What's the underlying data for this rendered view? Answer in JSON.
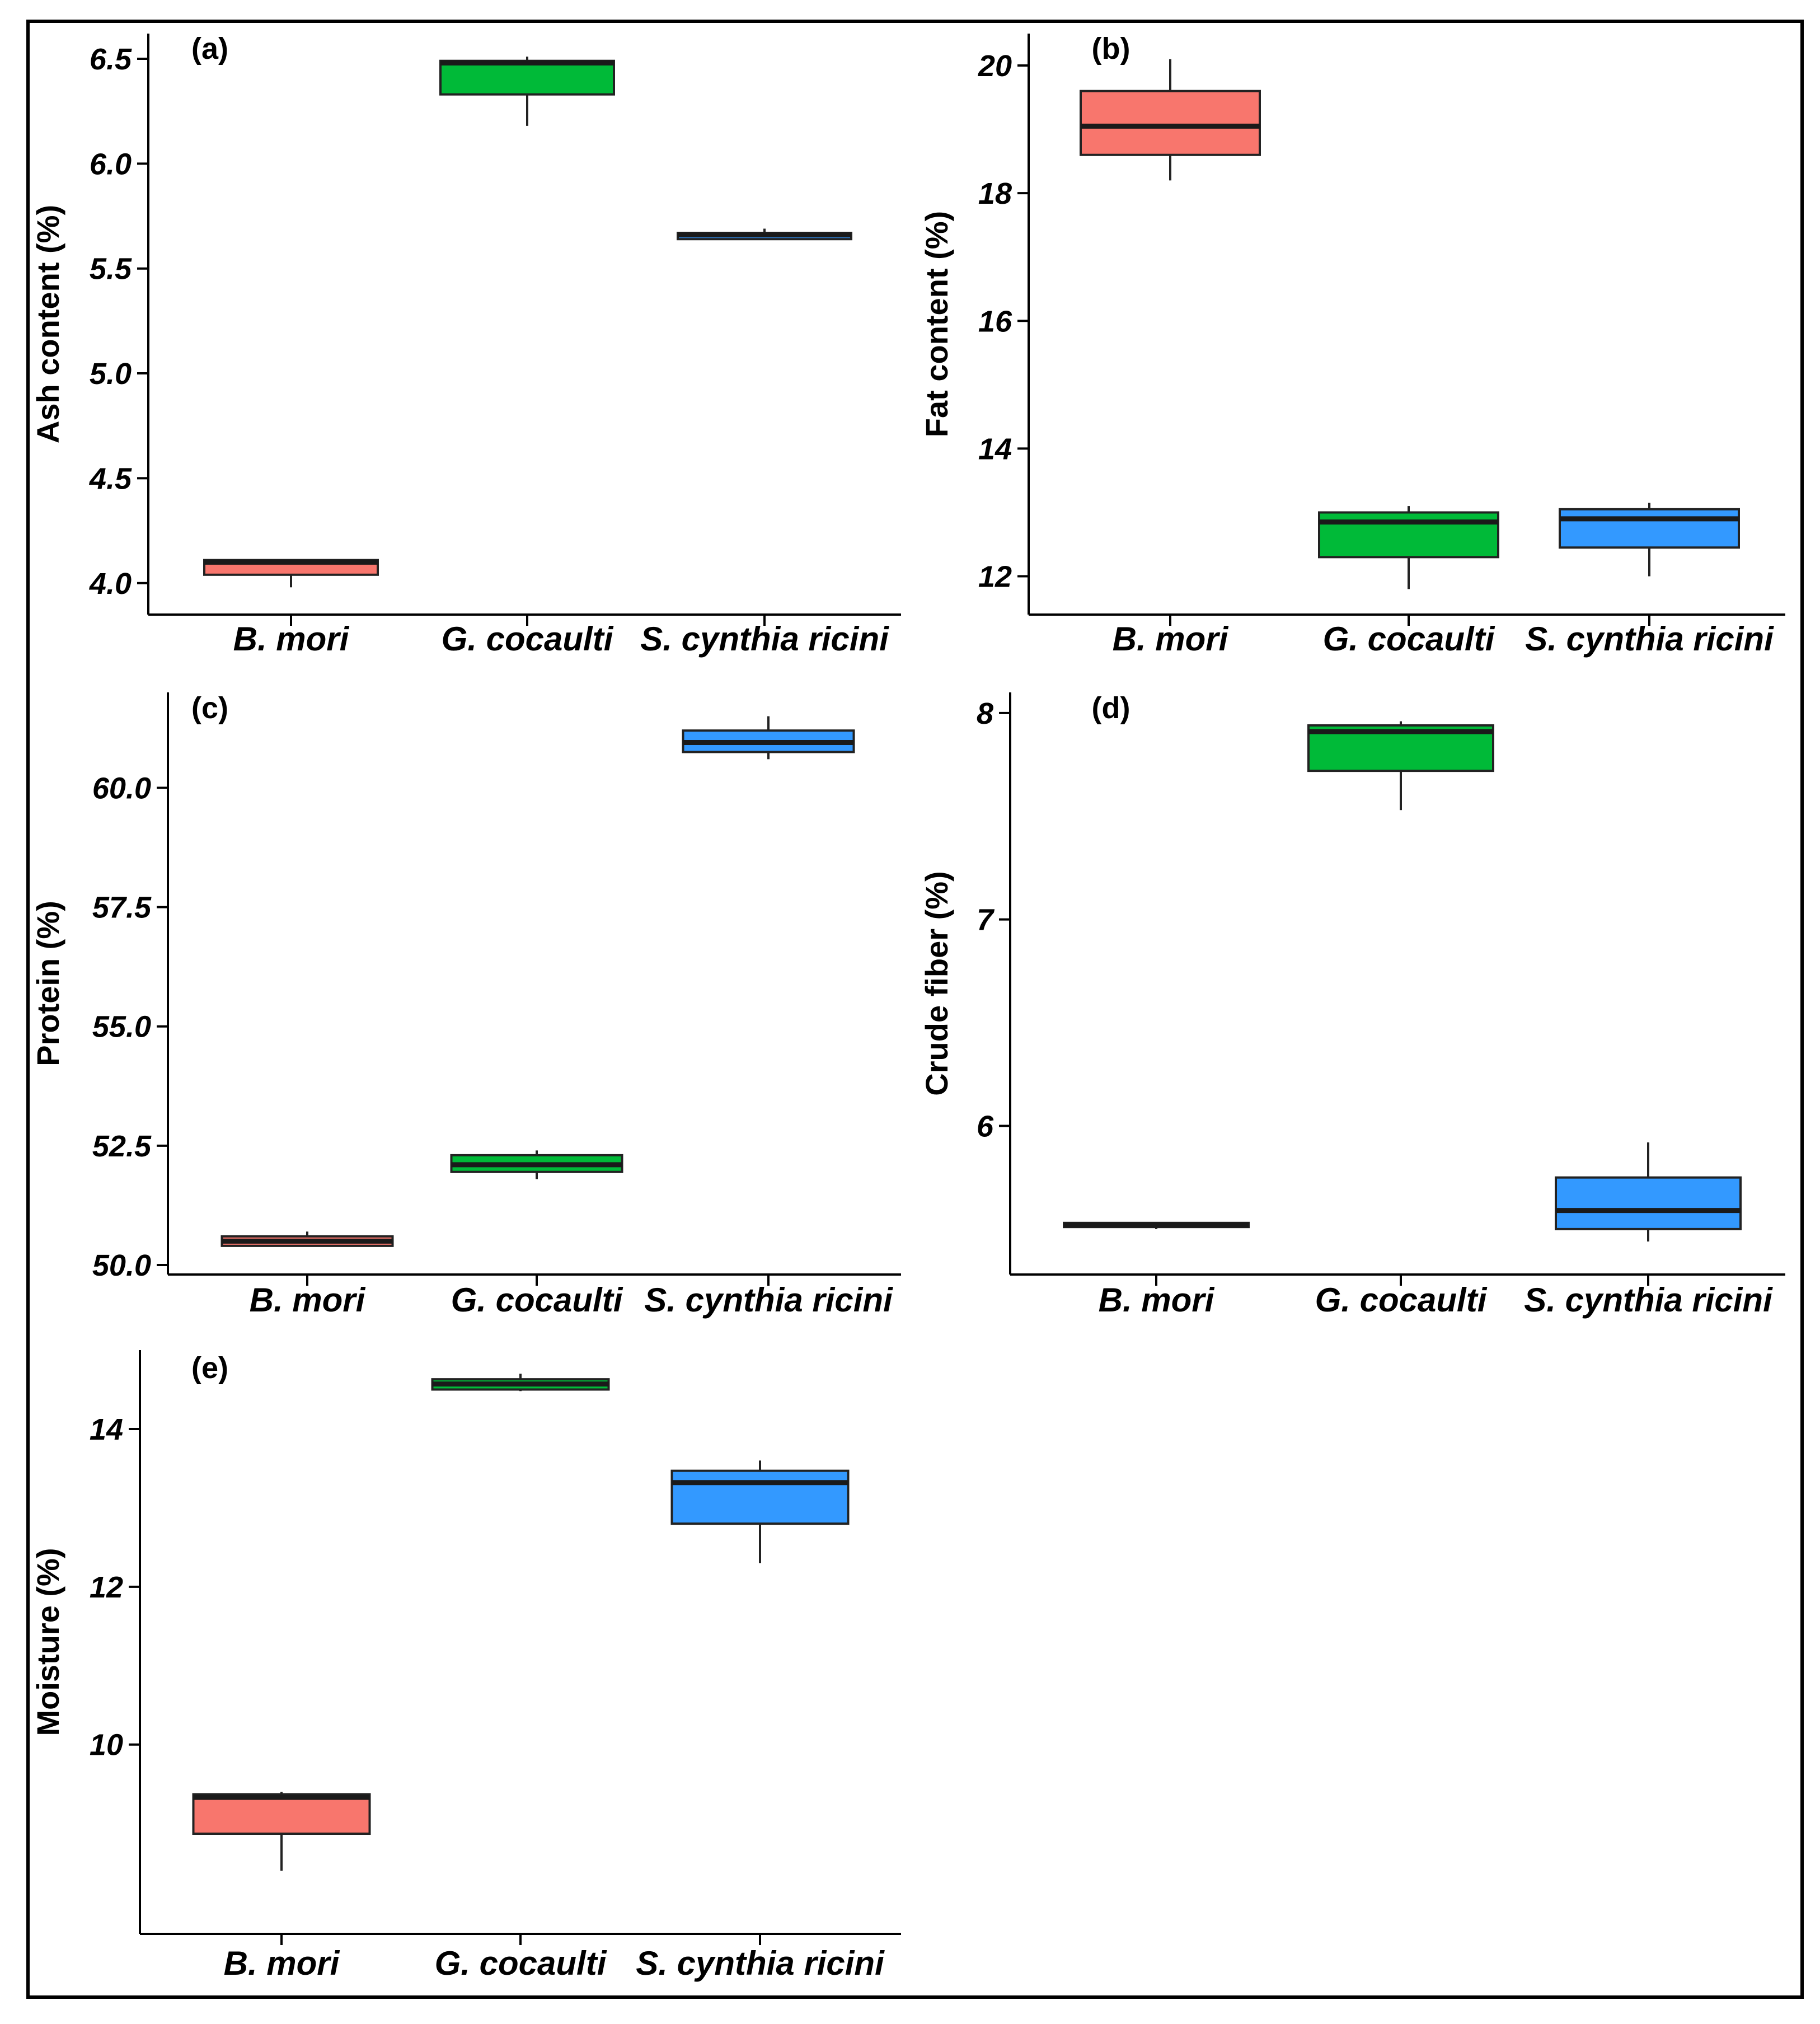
{
  "figure": {
    "colors": {
      "B. mori": "#f8766d",
      "G. cocaulti": "#00ba38",
      "S. cynthia ricini": "#3399ff"
    }
  },
  "chart_data": [
    {
      "type": "boxplot",
      "panel": "(a)",
      "ylabel": "Ash content (%)",
      "ylim": [
        3.85,
        6.62
      ],
      "yticks": [
        4.0,
        4.5,
        5.0,
        5.5,
        6.0,
        6.5
      ],
      "tick_labels": [
        "4.0",
        "4.5",
        "5.0",
        "5.5",
        "6.0",
        "6.5"
      ],
      "categories": [
        "B. mori",
        "G. cocaulti",
        "S. cynthia ricini"
      ],
      "boxes": [
        {
          "category": "B. mori",
          "min": 3.98,
          "q1": 4.04,
          "median": 4.1,
          "q3": 4.11,
          "max": 4.11
        },
        {
          "category": "G. cocaulti",
          "min": 6.18,
          "q1": 6.33,
          "median": 6.48,
          "q3": 6.49,
          "max": 6.51
        },
        {
          "category": "S. cynthia ricini",
          "min": 5.64,
          "q1": 5.64,
          "median": 5.66,
          "q3": 5.67,
          "max": 5.69
        }
      ]
    },
    {
      "type": "boxplot",
      "panel": "(b)",
      "ylabel": "Fat content (%)",
      "ylim": [
        11.4,
        20.5
      ],
      "yticks": [
        12,
        14,
        16,
        18,
        20
      ],
      "tick_labels": [
        "12",
        "14",
        "16",
        "18",
        "20"
      ],
      "categories": [
        "B. mori",
        "G. cocaulti",
        "S. cynthia ricini"
      ],
      "boxes": [
        {
          "category": "B. mori",
          "min": 18.2,
          "q1": 18.6,
          "median": 19.05,
          "q3": 19.6,
          "max": 20.1
        },
        {
          "category": "G. cocaulti",
          "min": 11.8,
          "q1": 12.3,
          "median": 12.85,
          "q3": 13.0,
          "max": 13.1
        },
        {
          "category": "S. cynthia ricini",
          "min": 12.0,
          "q1": 12.45,
          "median": 12.9,
          "q3": 13.05,
          "max": 13.15
        }
      ]
    },
    {
      "type": "boxplot",
      "panel": "(c)",
      "ylabel": "Protein (%)",
      "ylim": [
        49.8,
        62.0
      ],
      "yticks": [
        50.0,
        52.5,
        55.0,
        57.5,
        60.0
      ],
      "tick_labels": [
        "50.0",
        "52.5",
        "55.0",
        "57.5",
        "60.0"
      ],
      "categories": [
        "B. mori",
        "G. cocaulti",
        "S. cynthia ricini"
      ],
      "boxes": [
        {
          "category": "B. mori",
          "min": 50.4,
          "q1": 50.4,
          "median": 50.5,
          "q3": 50.6,
          "max": 50.7
        },
        {
          "category": "G. cocaulti",
          "min": 51.8,
          "q1": 51.95,
          "median": 52.1,
          "q3": 52.3,
          "max": 52.4
        },
        {
          "category": "S. cynthia ricini",
          "min": 60.6,
          "q1": 60.75,
          "median": 60.95,
          "q3": 61.2,
          "max": 61.5
        }
      ]
    },
    {
      "type": "boxplot",
      "panel": "(d)",
      "ylabel": "Crude fiber (%)",
      "ylim": [
        5.28,
        8.1
      ],
      "yticks": [
        6,
        7,
        8
      ],
      "tick_labels": [
        "6",
        "7",
        "8"
      ],
      "categories": [
        "B. mori",
        "G. cocaulti",
        "S. cynthia ricini"
      ],
      "boxes": [
        {
          "category": "B. mori",
          "min": 5.5,
          "q1": 5.51,
          "median": 5.52,
          "q3": 5.53,
          "max": 5.53
        },
        {
          "category": "G. cocaulti",
          "min": 7.53,
          "q1": 7.72,
          "median": 7.91,
          "q3": 7.94,
          "max": 7.96
        },
        {
          "category": "S. cynthia ricini",
          "min": 5.44,
          "q1": 5.5,
          "median": 5.59,
          "q3": 5.75,
          "max": 5.92
        }
      ]
    },
    {
      "type": "boxplot",
      "panel": "(e)",
      "ylabel": "Moisture (%)",
      "ylim": [
        7.6,
        15.0
      ],
      "yticks": [
        10,
        12,
        14
      ],
      "tick_labels": [
        "10",
        "12",
        "14"
      ],
      "categories": [
        "B. mori",
        "G. cocaulti",
        "S. cynthia ricini"
      ],
      "boxes": [
        {
          "category": "B. mori",
          "min": 8.4,
          "q1": 8.87,
          "median": 9.33,
          "q3": 9.37,
          "max": 9.4
        },
        {
          "category": "G. cocaulti",
          "min": 14.48,
          "q1": 14.5,
          "median": 14.57,
          "q3": 14.63,
          "max": 14.7
        },
        {
          "category": "S. cynthia ricini",
          "min": 12.3,
          "q1": 12.8,
          "median": 13.32,
          "q3": 13.47,
          "max": 13.6
        }
      ]
    }
  ]
}
